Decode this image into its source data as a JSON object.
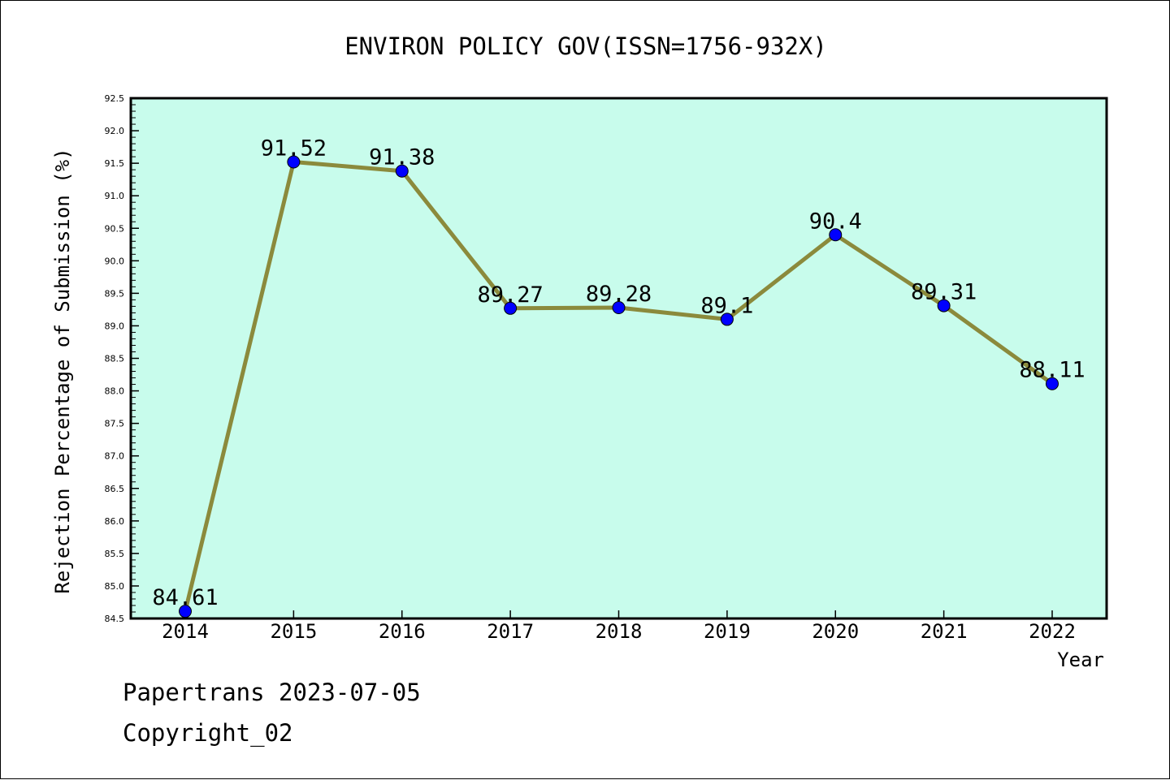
{
  "chart_data": {
    "type": "line",
    "title": "ENVIRON POLICY GOV(ISSN=1756-932X)",
    "xlabel": "Year",
    "ylabel": "Rejection Percentage of Submission (%)",
    "categories": [
      "2014",
      "2015",
      "2016",
      "2017",
      "2018",
      "2019",
      "2020",
      "2021",
      "2022"
    ],
    "series": [
      {
        "values": [
          84.61,
          91.52,
          91.38,
          89.27,
          89.28,
          89.1,
          90.4,
          89.31,
          88.11
        ],
        "point_labels": [
          "84.61",
          "91.52",
          "91.38",
          "89.27",
          "89.28",
          "89.1",
          "90.4",
          "89.31",
          "88.11"
        ]
      }
    ],
    "ylim": [
      84.5,
      92.5
    ],
    "yticks": [
      "84.5",
      "85.0",
      "85.5",
      "86.0",
      "86.5",
      "87.0",
      "87.5",
      "88.0",
      "88.5",
      "89.0",
      "89.5",
      "90.0",
      "90.5",
      "91.0",
      "91.5",
      "92.0",
      "92.5"
    ],
    "grid": false,
    "colors": {
      "plot_background": "#c8fcec",
      "line": "#8b8a3c",
      "marker": "#0000ff"
    }
  },
  "footer": {
    "line1": "Papertrans 2023-07-05",
    "line2": "Copyright_02"
  }
}
